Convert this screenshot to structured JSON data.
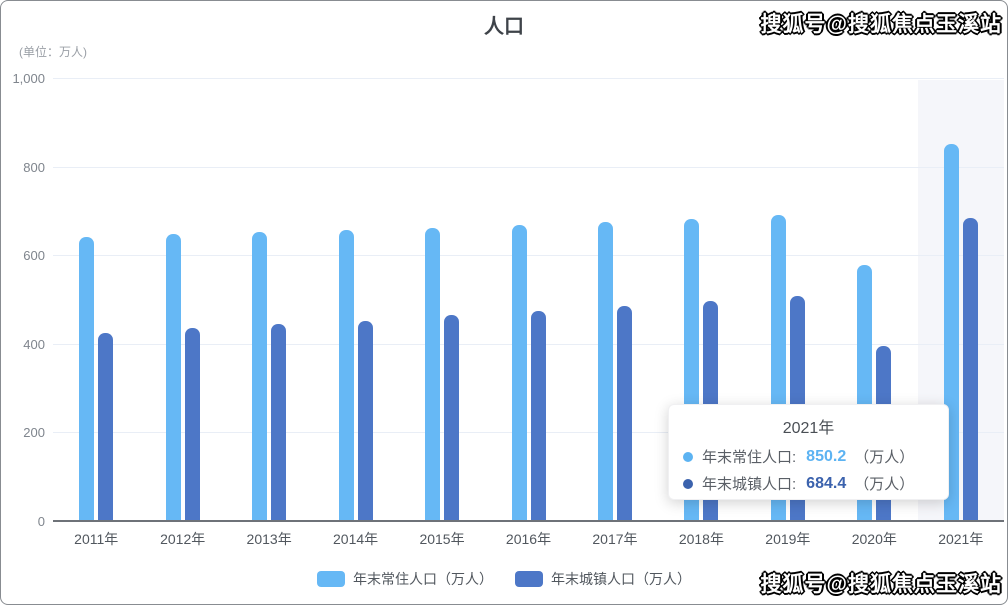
{
  "header": {
    "title": "人口",
    "unit_label": "(单位：万人)"
  },
  "watermark": {
    "text": "搜狐号@搜狐焦点玉溪站"
  },
  "tooltip": {
    "title": "2021年",
    "rows": [
      {
        "label": "年末常住人口:",
        "value": "850.2",
        "suffix": "（万人）",
        "color": "#5cb3f2"
      },
      {
        "label": "年末城镇人口:",
        "value": "684.4",
        "suffix": "（万人）",
        "color": "#3b62ad"
      }
    ]
  },
  "legend": [
    {
      "label": "年末常住人口（万人）",
      "color": "#66b8f5"
    },
    {
      "label": "年末城镇人口（万人）",
      "color": "#4d77c7"
    }
  ],
  "colors": {
    "series_light": "#66b8f5",
    "series_dark": "#4d77c7",
    "gridline": "#e9eef6",
    "axis_line": "#6e7278",
    "highlight_band": "#f5f6fa"
  },
  "chart_data": {
    "type": "bar",
    "title": "人口",
    "unit": "万人",
    "categories": [
      "2011年",
      "2012年",
      "2013年",
      "2014年",
      "2015年",
      "2016年",
      "2017年",
      "2018年",
      "2019年",
      "2020年",
      "2021年"
    ],
    "series": [
      {
        "name": "年末常住人口（万人）",
        "color": "#66b8f5",
        "values": [
          642,
          647,
          653,
          657,
          662,
          668,
          674,
          681,
          691,
          578,
          850.2
        ]
      },
      {
        "name": "年末城镇人口（万人）",
        "color": "#4d77c7",
        "values": [
          424,
          436,
          445,
          451,
          464,
          475,
          486,
          496,
          508,
          395,
          684.4
        ]
      }
    ],
    "ylim": [
      0,
      1000
    ],
    "yticks": [
      {
        "value": 0,
        "label": "0"
      },
      {
        "value": 200,
        "label": "200"
      },
      {
        "value": 400,
        "label": "400"
      },
      {
        "value": 600,
        "label": "600"
      },
      {
        "value": 800,
        "label": "800"
      },
      {
        "value": 1000,
        "label": "1,000"
      }
    ],
    "grid": true,
    "legend_position": "bottom",
    "highlight_category": "2021年"
  }
}
